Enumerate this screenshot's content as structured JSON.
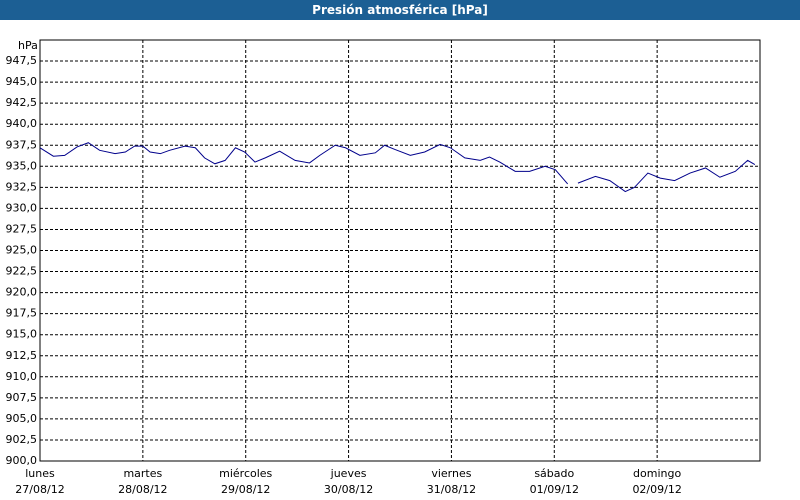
{
  "chart_data": {
    "type": "line",
    "title": "Presión atmosférica [hPa]",
    "y_label": "hPa",
    "xlim": [
      0,
      7
    ],
    "xticks": [
      {
        "value": 0,
        "label": [
          "lunes",
          "27/08/12"
        ]
      },
      {
        "value": 1,
        "label": [
          "martes",
          "28/08/12"
        ]
      },
      {
        "value": 2,
        "label": [
          "miércoles",
          "29/08/12"
        ]
      },
      {
        "value": 3,
        "label": [
          "jueves",
          "30/08/12"
        ]
      },
      {
        "value": 4,
        "label": [
          "viernes",
          "31/08/12"
        ]
      },
      {
        "value": 5,
        "label": [
          "sábado",
          "01/09/12"
        ]
      },
      {
        "value": 6,
        "label": [
          "domingo",
          "02/09/12"
        ]
      }
    ],
    "ylim": [
      900,
      950
    ],
    "yticks": [
      {
        "value": 900,
        "label": "900,0"
      },
      {
        "value": 902.5,
        "label": "902,5"
      },
      {
        "value": 905,
        "label": "905,0"
      },
      {
        "value": 907.5,
        "label": "907,5"
      },
      {
        "value": 910,
        "label": "910,0"
      },
      {
        "value": 912.5,
        "label": "912,5"
      },
      {
        "value": 915,
        "label": "915,0"
      },
      {
        "value": 917.5,
        "label": "917,5"
      },
      {
        "value": 920,
        "label": "920,0"
      },
      {
        "value": 922.5,
        "label": "922,5"
      },
      {
        "value": 925,
        "label": "925,0"
      },
      {
        "value": 927.5,
        "label": "927,5"
      },
      {
        "value": 930,
        "label": "930,0"
      },
      {
        "value": 932.5,
        "label": "932,5"
      },
      {
        "value": 935,
        "label": "935,0"
      },
      {
        "value": 937.5,
        "label": "937,5"
      },
      {
        "value": 940,
        "label": "940,0"
      },
      {
        "value": 942.5,
        "label": "942,5"
      },
      {
        "value": 945,
        "label": "945,0"
      },
      {
        "value": 947.5,
        "label": "947,5"
      }
    ],
    "grid": true,
    "x": [
      0,
      0.13,
      0.24,
      0.36,
      0.47,
      0.58,
      0.73,
      0.83,
      0.92,
      1.0,
      1.07,
      1.17,
      1.26,
      1.41,
      1.51,
      1.6,
      1.7,
      1.8,
      1.9,
      1.99,
      2.09,
      2.19,
      2.33,
      2.48,
      2.62,
      2.72,
      2.87,
      2.97,
      3.11,
      3.26,
      3.35,
      3.45,
      3.6,
      3.74,
      3.89,
      3.99,
      4.13,
      4.28,
      4.37,
      4.47,
      4.62,
      4.76,
      4.91,
      5.01,
      5.13,
      5.18,
      5.23,
      5.4,
      5.54,
      5.69,
      5.78,
      5.91,
      6.03,
      6.17,
      6.32,
      6.47,
      6.61,
      6.76,
      6.88,
      6.95
    ],
    "series": [
      {
        "color": "#00008b",
        "values": [
          937.2,
          936.2,
          936.3,
          937.3,
          937.8,
          936.9,
          936.5,
          936.7,
          937.4,
          937.4,
          936.7,
          936.5,
          936.9,
          937.4,
          937.2,
          936.0,
          935.3,
          935.7,
          937.2,
          936.7,
          935.5,
          936.0,
          936.8,
          935.7,
          935.4,
          936.3,
          937.5,
          937.2,
          936.3,
          936.6,
          937.5,
          937.0,
          936.3,
          936.7,
          937.6,
          937.2,
          936.0,
          935.7,
          936.1,
          935.5,
          934.4,
          934.4,
          935.0,
          934.6,
          932.9,
          null,
          933.0,
          933.8,
          933.3,
          932.0,
          932.5,
          934.2,
          933.6,
          933.3,
          934.2,
          934.8,
          933.7,
          934.4,
          935.7,
          935.2
        ]
      }
    ]
  }
}
